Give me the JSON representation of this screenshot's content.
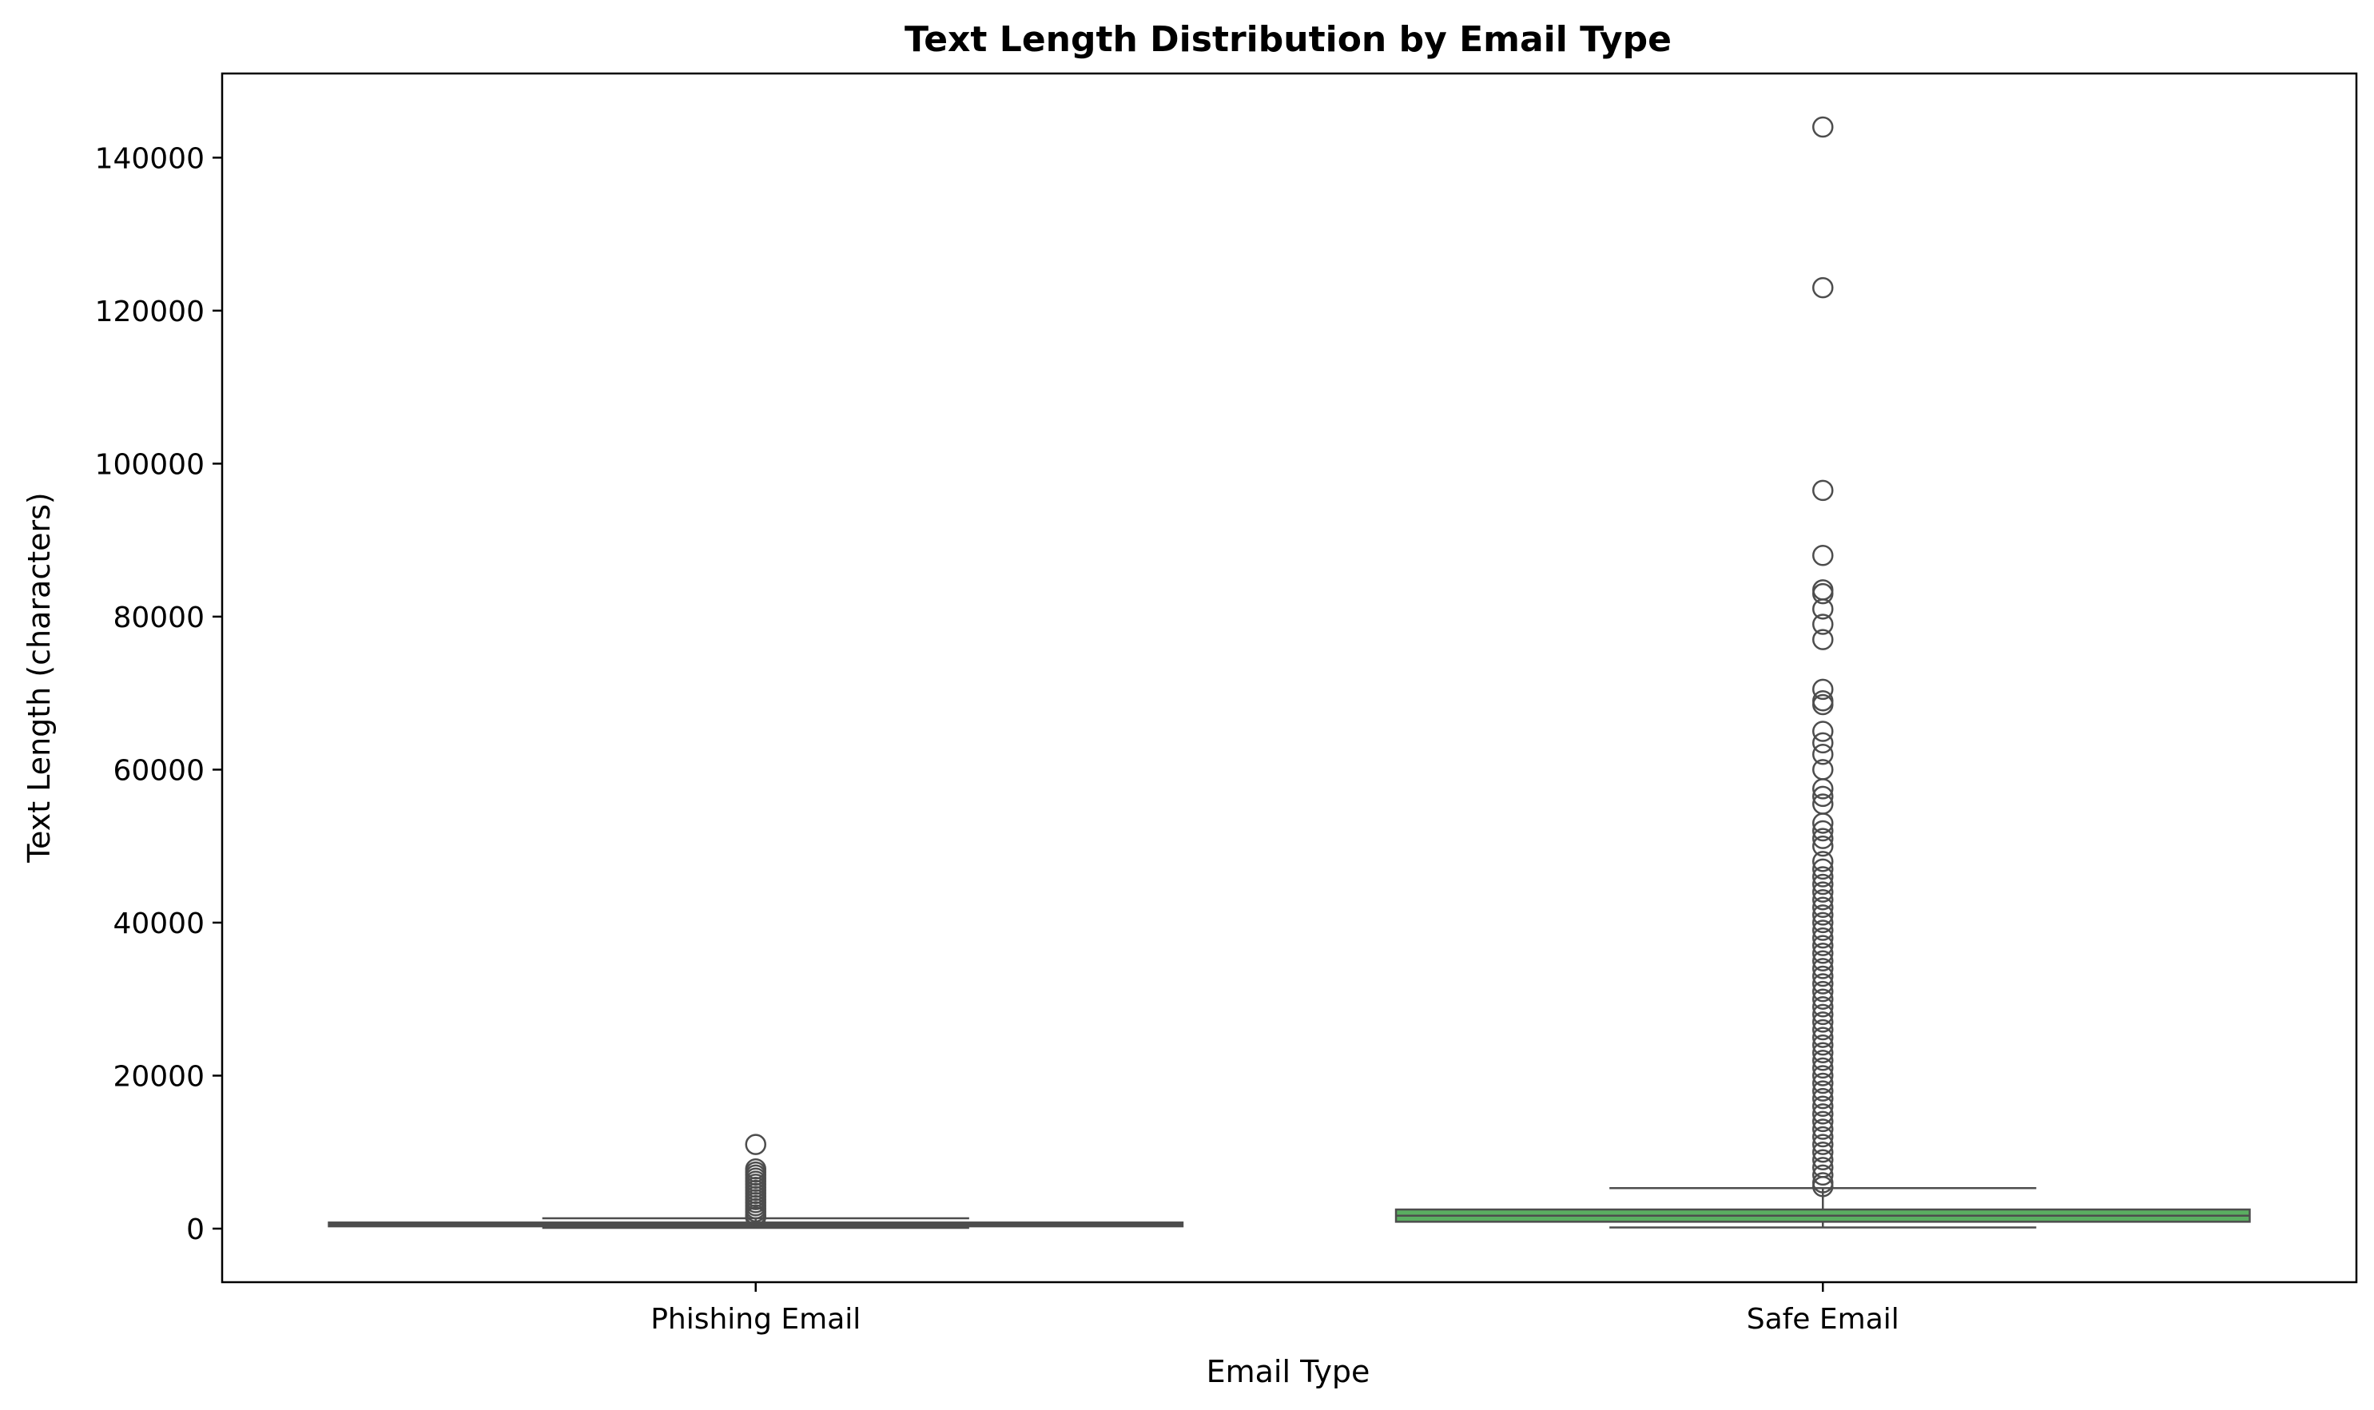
{
  "chart_data": {
    "type": "boxplot",
    "title": "Text Length Distribution by Email Type",
    "xlabel": "Email Type",
    "ylabel": "Text Length (characters)",
    "ylim": [
      -7000,
      151000
    ],
    "yticks": [
      0,
      20000,
      40000,
      60000,
      80000,
      100000,
      120000,
      140000
    ],
    "grid": false,
    "legend": "none",
    "categories": [
      "Phishing Email",
      "Safe Email"
    ],
    "boxes": [
      {
        "category": "Phishing Email",
        "color": "#5b6fc3",
        "whisker_low": 100,
        "q1": 300,
        "median": 550,
        "q3": 800,
        "whisker_high": 1350,
        "outliers": [
          11000,
          7800,
          7400,
          7000,
          6600,
          6200,
          5800,
          5400,
          5000,
          4600,
          4200,
          3800,
          3400,
          3000,
          2600,
          2200,
          1800,
          1500
        ]
      },
      {
        "category": "Safe Email",
        "color": "#5aae61",
        "whisker_low": 150,
        "q1": 900,
        "median": 1700,
        "q3": 2500,
        "whisker_high": 5300,
        "outliers": [
          144000,
          123000,
          96500,
          88000,
          83500,
          83000,
          81000,
          79000,
          77000,
          70500,
          69000,
          68500,
          65000,
          63500,
          62000,
          60000,
          57500,
          56500,
          55500,
          53000,
          52000,
          51000,
          50000,
          48000,
          47000,
          46000,
          45000,
          44000,
          43000,
          42000,
          41000,
          40000,
          39000,
          38000,
          37000,
          36000,
          35000,
          34000,
          33000,
          32000,
          31000,
          30000,
          29000,
          28000,
          27000,
          26000,
          25000,
          24000,
          23000,
          22000,
          21000,
          20000,
          19000,
          18000,
          17000,
          16000,
          15000,
          14000,
          13000,
          12000,
          11000,
          10000,
          9000,
          8000,
          7000,
          6000,
          5500
        ]
      }
    ]
  }
}
